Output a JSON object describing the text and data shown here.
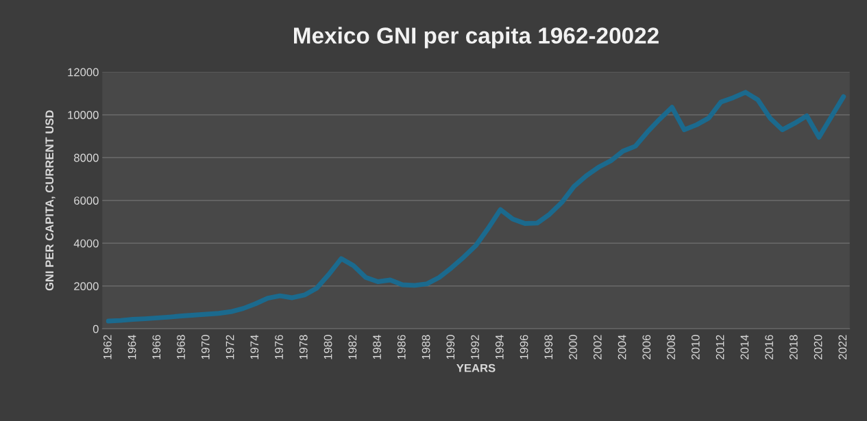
{
  "chart_data": {
    "type": "line",
    "title": "Mexico GNI per capita 1962-20022",
    "xlabel": "YEARS",
    "ylabel": "GNI PER CAPITA, CURRENT USD",
    "categories": [
      "1962",
      null,
      "1964",
      null,
      "1966",
      null,
      "1968",
      null,
      "1970",
      null,
      "1972",
      null,
      "1974",
      null,
      "1976",
      null,
      "1978",
      null,
      "1980",
      null,
      "1982",
      null,
      "1984",
      null,
      "1986",
      null,
      "1988",
      null,
      "1990",
      null,
      "1992",
      null,
      "1994",
      null,
      "1996",
      null,
      "1998",
      null,
      "2000",
      null,
      "2002",
      null,
      "2004",
      null,
      "2006",
      null,
      "2008",
      null,
      "2010",
      null,
      "2012",
      null,
      "2014",
      null,
      "2016",
      null,
      "2018",
      null,
      "2020",
      null,
      "2022"
    ],
    "series": [
      {
        "color": "#1b6a8e",
        "values": [
          360,
          390,
          440,
          470,
          510,
          550,
          600,
          640,
          680,
          720,
          800,
          950,
          1170,
          1430,
          1540,
          1450,
          1580,
          1900,
          2550,
          3280,
          2950,
          2400,
          2200,
          2280,
          2060,
          2030,
          2100,
          2400,
          2850,
          3350,
          3900,
          4700,
          5570,
          5130,
          4920,
          4940,
          5350,
          5900,
          6650,
          7150,
          7550,
          7850,
          8300,
          8530,
          9200,
          9800,
          10350,
          9300,
          9530,
          9850,
          10600,
          10800,
          11050,
          10700,
          9850,
          9300,
          9600,
          9950,
          8950,
          9900,
          10850
        ]
      }
    ],
    "ylim": [
      0,
      12000
    ],
    "yticks": [
      0,
      2000,
      4000,
      6000,
      8000,
      10000,
      12000
    ],
    "grid": "y",
    "legend": false,
    "marker": "none",
    "line_style": "solid"
  }
}
